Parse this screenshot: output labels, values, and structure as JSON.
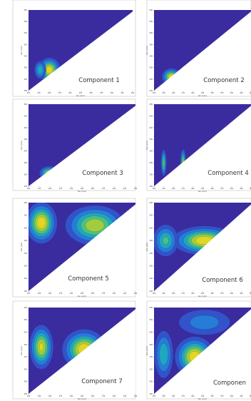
{
  "figure": {
    "background": "#ffffff",
    "colormap": [
      "#3a2c9e",
      "#2f5fd8",
      "#1f93d6",
      "#20b7aa",
      "#7fc94a",
      "#d3cf2c",
      "#f6e21a"
    ],
    "mask_color": "#ffffff",
    "frame_color": "#bfbfbf"
  },
  "chart_data": [
    {
      "type": "heatmap",
      "title": "Component 1",
      "xlabel": "Ex. (nm)",
      "ylabel": "Em. (nm)",
      "peaks": [
        {
          "ex": 250,
          "em": 340,
          "sx": 13,
          "sy": 26,
          "amp": 1.0
        },
        {
          "ex": 228,
          "em": 340,
          "sx": 8,
          "sy": 22,
          "amp": 0.55
        }
      ],
      "grid": false
    },
    {
      "type": "heatmap",
      "title": "Component 2",
      "xlabel": "Ex. (nm)",
      "ylabel": "Em. (nm)",
      "peaks": [
        {
          "ex": 245,
          "em": 310,
          "sx": 12,
          "sy": 18,
          "amp": 1.0
        }
      ],
      "grid": false
    },
    {
      "type": "heatmap",
      "title": "Component 3",
      "xlabel": "Ex. (nm)",
      "ylabel": "Em. (nm)",
      "peaks": [
        {
          "ex": 250,
          "em": 305,
          "sx": 12,
          "sy": 15,
          "amp": 1.0
        }
      ],
      "grid": false
    },
    {
      "type": "heatmap",
      "title": "Component 4",
      "xlabel": "Ex. (nm)",
      "ylabel": "Em. (nm)",
      "peaks": [
        {
          "ex": 225,
          "em": 350,
          "sx": 4,
          "sy": 30,
          "amp": 0.7
        },
        {
          "ex": 275,
          "em": 350,
          "sx": 4,
          "sy": 30,
          "amp": 0.8
        }
      ],
      "grid": false
    },
    {
      "type": "heatmap",
      "title": "Component 5",
      "xlabel": "Ex. (nm)",
      "ylabel": "Em. (nm)",
      "peaks": [
        {
          "ex": 230,
          "em": 520,
          "sx": 18,
          "sy": 40,
          "amp": 1.0
        },
        {
          "ex": 355,
          "em": 510,
          "sx": 35,
          "sy": 40,
          "amp": 0.85
        }
      ],
      "grid": false
    },
    {
      "type": "heatmap",
      "title": "Component 6",
      "xlabel": "Ex. (nm)",
      "ylabel": "Em. (nm)",
      "peaks": [
        {
          "ex": 330,
          "em": 450,
          "sx": 40,
          "sy": 28,
          "amp": 1.0
        },
        {
          "ex": 230,
          "em": 450,
          "sx": 18,
          "sy": 35,
          "amp": 0.6
        }
      ],
      "grid": false
    },
    {
      "type": "heatmap",
      "title": "Component 7",
      "xlabel": "Ex. (nm)",
      "ylabel": "Em. (nm)",
      "peaks": [
        {
          "ex": 230,
          "em": 440,
          "sx": 14,
          "sy": 45,
          "amp": 0.9
        },
        {
          "ex": 330,
          "em": 430,
          "sx": 25,
          "sy": 40,
          "amp": 1.0
        }
      ],
      "grid": false
    },
    {
      "type": "heatmap",
      "title": "Componen",
      "xlabel": "Ex. (nm)",
      "ylabel": "Em. (nm)",
      "peaks": [
        {
          "ex": 305,
          "em": 400,
          "sx": 25,
          "sy": 40,
          "amp": 1.0
        },
        {
          "ex": 225,
          "em": 410,
          "sx": 14,
          "sy": 55,
          "amp": 0.55
        },
        {
          "ex": 330,
          "em": 540,
          "sx": 45,
          "sy": 35,
          "amp": 0.35
        }
      ],
      "grid": false
    }
  ]
}
